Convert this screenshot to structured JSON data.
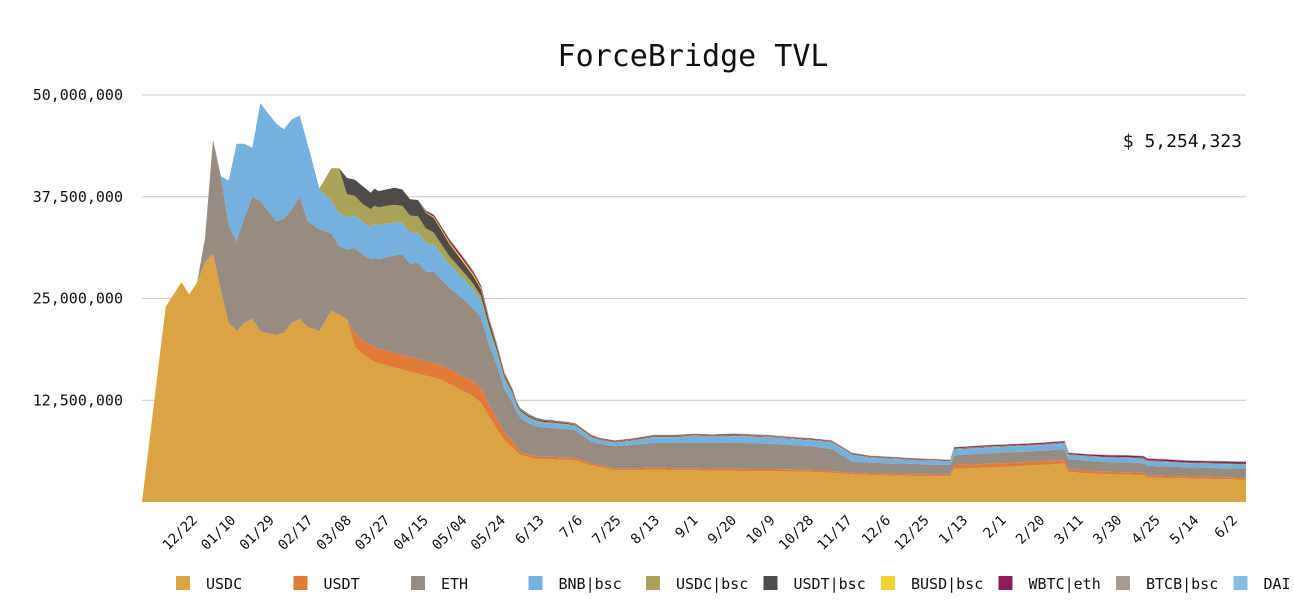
{
  "chart_data": {
    "type": "area",
    "stacked": true,
    "title": "ForceBridge TVL",
    "total_label": "$ 5,254,323",
    "xlabel": "",
    "ylabel": "",
    "ylim": [
      0,
      50000000
    ],
    "yticks": [
      12500000,
      25000000,
      37500000,
      50000000
    ],
    "ytick_labels": [
      "12,500,000",
      "25,000,000",
      "37,500,000",
      "50,000,000"
    ],
    "xtick_labels": [
      "12/22",
      "01/10",
      "01/29",
      "02/17",
      "03/08",
      "03/27",
      "04/15",
      "05/04",
      "05/24",
      "6/13",
      "7/6",
      "7/25",
      "8/13",
      "9/1",
      "9/20",
      "10/9",
      "10/28",
      "11/17",
      "12/6",
      "12/25",
      "1/13",
      "2/1",
      "2/20",
      "3/11",
      "3/30",
      "4/25",
      "5/14",
      "6/2"
    ],
    "grid": true,
    "legend_position": "bottom",
    "x": [
      0,
      6,
      10,
      12,
      14,
      16,
      18,
      20,
      22,
      24,
      26,
      28,
      30,
      34,
      36,
      38,
      40,
      42,
      45,
      48,
      50,
      52,
      54,
      56,
      58,
      59,
      60,
      62,
      64,
      66,
      68,
      70,
      72,
      74,
      76,
      78,
      80,
      82,
      84,
      86,
      88,
      90,
      92,
      94,
      95,
      96,
      98,
      100,
      102,
      104,
      106,
      108,
      110,
      112,
      114,
      116,
      120,
      125,
      130,
      135,
      140,
      145,
      150,
      155,
      160,
      165,
      170,
      175,
      180,
      185,
      190,
      195,
      200,
      205,
      206,
      210,
      215,
      220,
      225,
      230,
      234,
      235,
      240,
      245,
      250,
      254,
      255,
      260,
      265,
      270,
      275,
      280
    ],
    "series": [
      {
        "name": "USDC",
        "color": "#D9A441",
        "values": [
          0,
          24000000,
          27000000,
          25500000,
          27000000,
          29500000,
          30500000,
          26000000,
          22000000,
          21000000,
          22000000,
          22500000,
          21000000,
          20500000,
          20800000,
          22000000,
          22500000,
          21500000,
          21000000,
          23500000,
          23000000,
          22500000,
          19000000,
          18200000,
          17500000,
          17200000,
          17000000,
          16800000,
          16500000,
          16300000,
          16000000,
          15800000,
          15500000,
          15300000,
          15000000,
          14500000,
          14000000,
          13500000,
          13000000,
          12200000,
          10500000,
          9000000,
          7500000,
          6700000,
          6200000,
          5800000,
          5500000,
          5300000,
          5250000,
          5250000,
          5200000,
          5200000,
          5100000,
          4800000,
          4500000,
          4300000,
          3900000,
          3900000,
          4000000,
          3900000,
          3900000,
          3850000,
          3850000,
          3800000,
          3800000,
          3750000,
          3700000,
          3600000,
          3400000,
          3300000,
          3250000,
          3200000,
          3200000,
          3150000,
          4100000,
          4150000,
          4250000,
          4350000,
          4500000,
          4600000,
          4700000,
          3700000,
          3500000,
          3400000,
          3350000,
          3300000,
          3000000,
          2950000,
          2900000,
          2850000,
          2800000,
          2750000
        ]
      },
      {
        "name": "USDT",
        "color": "#E07B39",
        "values": [
          0,
          0,
          0,
          0,
          0,
          0,
          0,
          0,
          0,
          0,
          0,
          0,
          0,
          0,
          0,
          0,
          0,
          0,
          0,
          0,
          0,
          0,
          1700000,
          1700000,
          1800000,
          1800000,
          1800000,
          1800000,
          1800000,
          1800000,
          1800000,
          1800000,
          1800000,
          1800000,
          1800000,
          1800000,
          1800000,
          1800000,
          1800000,
          1800000,
          1600000,
          1300000,
          1000000,
          800000,
          500000,
          400000,
          300000,
          300000,
          300000,
          300000,
          300000,
          300000,
          300000,
          300000,
          250000,
          250000,
          250000,
          250000,
          250000,
          250000,
          250000,
          250000,
          250000,
          250000,
          250000,
          250000,
          250000,
          200000,
          200000,
          200000,
          200000,
          200000,
          200000,
          200000,
          450000,
          450000,
          450000,
          450000,
          450000,
          450000,
          450000,
          350000,
          350000,
          300000,
          300000,
          300000,
          300000,
          250000,
          250000,
          250000,
          250000,
          250000
        ]
      },
      {
        "name": "ETH",
        "color": "#968C82",
        "values": [
          0,
          0,
          0,
          0,
          0,
          3000000,
          14000000,
          14000000,
          12000000,
          11000000,
          13000000,
          15000000,
          16000000,
          14000000,
          14000000,
          14000000,
          15000000,
          13000000,
          12500000,
          9500000,
          8500000,
          8500000,
          10500000,
          10500000,
          10500000,
          11000000,
          11000000,
          11500000,
          12000000,
          12300000,
          11500000,
          11800000,
          11000000,
          11200000,
          10500000,
          10000000,
          9700000,
          9400000,
          9000000,
          8600000,
          7300000,
          6500000,
          5300000,
          4700000,
          4300000,
          4100000,
          3900000,
          3700000,
          3600000,
          3550000,
          3500000,
          3450000,
          3400000,
          3000000,
          2700000,
          2600000,
          2700000,
          2900000,
          3000000,
          3100000,
          3100000,
          3150000,
          3200000,
          3150000,
          3100000,
          3000000,
          2900000,
          2700000,
          1400000,
          1300000,
          1300000,
          1300000,
          1200000,
          1200000,
          1200000,
          1250000,
          1300000,
          1300000,
          1250000,
          1300000,
          1350000,
          1200000,
          1200000,
          1200000,
          1200000,
          1150000,
          1150000,
          1150000,
          1100000,
          1100000,
          1100000,
          1100000
        ]
      },
      {
        "name": "BNB|bsc",
        "color": "#74B1DE",
        "values": [
          0,
          0,
          0,
          0,
          0,
          0,
          0,
          0,
          5500000,
          12000000,
          9000000,
          6000000,
          12000000,
          12000000,
          11000000,
          11000000,
          10000000,
          9500000,
          5000000,
          4000000,
          4000000,
          4000000,
          4000000,
          4000000,
          4000000,
          4200000,
          4200000,
          4100000,
          4000000,
          3900000,
          3800000,
          3700000,
          3500000,
          3300000,
          3100000,
          2900000,
          2700000,
          2500000,
          2300000,
          2100000,
          1800000,
          1500000,
          1200000,
          1000000,
          800000,
          700000,
          650000,
          600000,
          550000,
          550000,
          550000,
          520000,
          500000,
          480000,
          450000,
          430000,
          400000,
          500000,
          700000,
          700000,
          800000,
          750000,
          800000,
          800000,
          750000,
          700000,
          700000,
          800000,
          800000,
          600000,
          550000,
          450000,
          450000,
          400000,
          700000,
          700000,
          700000,
          700000,
          700000,
          700000,
          700000,
          500000,
          500000,
          550000,
          550000,
          550000,
          550000,
          550000,
          500000,
          500000,
          500000,
          500000
        ]
      },
      {
        "name": "USDC|bsc",
        "color": "#A8A356",
        "values": [
          0,
          0,
          0,
          0,
          0,
          0,
          0,
          0,
          0,
          0,
          0,
          0,
          0,
          0,
          0,
          0,
          0,
          0,
          0,
          4000000,
          5500000,
          2800000,
          2400000,
          2200000,
          2200000,
          2200000,
          2200000,
          2200000,
          2200000,
          2100000,
          2100000,
          2000000,
          1800000,
          1500000,
          1200000,
          1000000,
          900000,
          800000,
          700000,
          600000,
          450000,
          350000,
          250000,
          200000,
          180000,
          160000,
          150000,
          140000,
          120000,
          120000,
          110000,
          110000,
          100000,
          100000,
          90000,
          80000,
          80000,
          80000,
          80000,
          80000,
          80000,
          80000,
          80000,
          80000,
          80000,
          70000,
          70000,
          60000,
          60000,
          60000,
          60000,
          50000,
          50000,
          50000,
          60000,
          60000,
          60000,
          60000,
          60000,
          60000,
          60000,
          50000,
          50000,
          50000,
          50000,
          50000,
          50000,
          50000,
          50000,
          50000,
          50000,
          50000
        ]
      },
      {
        "name": "USDT|bsc",
        "color": "#4E4B48",
        "values": [
          0,
          0,
          0,
          0,
          0,
          0,
          0,
          0,
          0,
          0,
          0,
          0,
          0,
          0,
          0,
          0,
          0,
          0,
          0,
          0,
          0,
          2000000,
          2000000,
          2200000,
          2000000,
          2100000,
          2000000,
          2000000,
          2100000,
          2000000,
          2000000,
          2000000,
          1900000,
          1800000,
          1700000,
          1500000,
          1300000,
          1100000,
          1000000,
          800000,
          600000,
          450000,
          300000,
          250000,
          200000,
          180000,
          160000,
          150000,
          140000,
          130000,
          120000,
          110000,
          100000,
          100000,
          90000,
          80000,
          80000,
          80000,
          80000,
          80000,
          80000,
          80000,
          80000,
          80000,
          70000,
          70000,
          70000,
          60000,
          60000,
          60000,
          50000,
          50000,
          50000,
          50000,
          60000,
          60000,
          60000,
          60000,
          60000,
          60000,
          60000,
          50000,
          50000,
          50000,
          50000,
          50000,
          50000,
          50000,
          50000,
          50000,
          50000,
          50000
        ]
      },
      {
        "name": "BUSD|bsc",
        "color": "#F5D431",
        "values": [
          0,
          0,
          0,
          0,
          0,
          0,
          0,
          0,
          0,
          0,
          0,
          0,
          0,
          0,
          0,
          0,
          0,
          0,
          0,
          0,
          0,
          0,
          0,
          0,
          0,
          0,
          0,
          0,
          0,
          0,
          0,
          0,
          100000,
          150000,
          200000,
          220000,
          240000,
          250000,
          220000,
          200000,
          150000,
          120000,
          90000,
          70000,
          60000,
          50000,
          45000,
          40000,
          40000,
          35000,
          35000,
          30000,
          30000,
          30000,
          30000,
          25000,
          25000,
          25000,
          25000,
          25000,
          25000,
          25000,
          25000,
          25000,
          20000,
          20000,
          20000,
          20000,
          20000,
          20000,
          20000,
          20000,
          20000,
          20000,
          20000,
          20000,
          20000,
          20000,
          20000,
          20000,
          20000,
          20000,
          20000,
          20000,
          20000,
          20000,
          20000,
          20000,
          20000,
          20000,
          20000,
          20000
        ]
      },
      {
        "name": "WBTC|eth",
        "color": "#8E1B5C",
        "values": [
          0,
          0,
          0,
          0,
          0,
          0,
          0,
          0,
          0,
          0,
          0,
          0,
          0,
          0,
          0,
          0,
          0,
          0,
          0,
          0,
          0,
          0,
          0,
          0,
          0,
          0,
          0,
          0,
          0,
          0,
          0,
          0,
          150000,
          200000,
          250000,
          280000,
          300000,
          300000,
          280000,
          250000,
          200000,
          170000,
          140000,
          120000,
          100000,
          90000,
          85000,
          80000,
          80000,
          80000,
          80000,
          80000,
          80000,
          80000,
          80000,
          80000,
          80000,
          80000,
          80000,
          80000,
          80000,
          80000,
          80000,
          80000,
          80000,
          80000,
          80000,
          80000,
          80000,
          80000,
          80000,
          80000,
          80000,
          80000,
          120000,
          130000,
          130000,
          130000,
          130000,
          130000,
          130000,
          150000,
          170000,
          180000,
          190000,
          200000,
          200000,
          200000,
          200000,
          200000,
          200000,
          200000
        ]
      },
      {
        "name": "BTCB|bsc",
        "color": "#A89A8E",
        "values": [
          0,
          0,
          0,
          0,
          0,
          0,
          0,
          0,
          0,
          0,
          0,
          0,
          0,
          0,
          0,
          0,
          0,
          0,
          0,
          0,
          0,
          0,
          0,
          0,
          0,
          0,
          0,
          0,
          0,
          0,
          0,
          0,
          50000,
          80000,
          100000,
          100000,
          100000,
          100000,
          100000,
          90000,
          80000,
          70000,
          60000,
          50000,
          50000,
          40000,
          40000,
          40000,
          40000,
          40000,
          40000,
          40000,
          40000,
          40000,
          40000,
          40000,
          40000,
          40000,
          40000,
          40000,
          40000,
          40000,
          40000,
          40000,
          40000,
          40000,
          40000,
          40000,
          40000,
          40000,
          40000,
          40000,
          40000,
          40000,
          40000,
          40000,
          40000,
          40000,
          40000,
          40000,
          40000,
          40000,
          40000,
          40000,
          40000,
          40000,
          40000,
          40000,
          40000,
          40000,
          40000,
          40000
        ]
      },
      {
        "name": "DAI|eth",
        "color": "#86BDE5",
        "values": [
          0,
          0,
          0,
          0,
          0,
          0,
          0,
          0,
          0,
          0,
          0,
          0,
          0,
          0,
          0,
          0,
          0,
          0,
          0,
          0,
          0,
          0,
          0,
          0,
          0,
          0,
          0,
          0,
          0,
          0,
          0,
          0,
          30000,
          40000,
          50000,
          50000,
          50000,
          50000,
          50000,
          40000,
          40000,
          30000,
          30000,
          30000,
          25000,
          25000,
          25000,
          25000,
          25000,
          25000,
          25000,
          25000,
          25000,
          25000,
          25000,
          25000,
          25000,
          25000,
          25000,
          25000,
          25000,
          25000,
          25000,
          25000,
          25000,
          25000,
          25000,
          25000,
          25000,
          25000,
          25000,
          25000,
          25000,
          25000,
          25000,
          25000,
          25000,
          25000,
          25000,
          25000,
          25000,
          25000,
          25000,
          25000,
          25000,
          25000,
          25000,
          25000,
          25000,
          25000,
          25000,
          25000
        ]
      }
    ]
  }
}
